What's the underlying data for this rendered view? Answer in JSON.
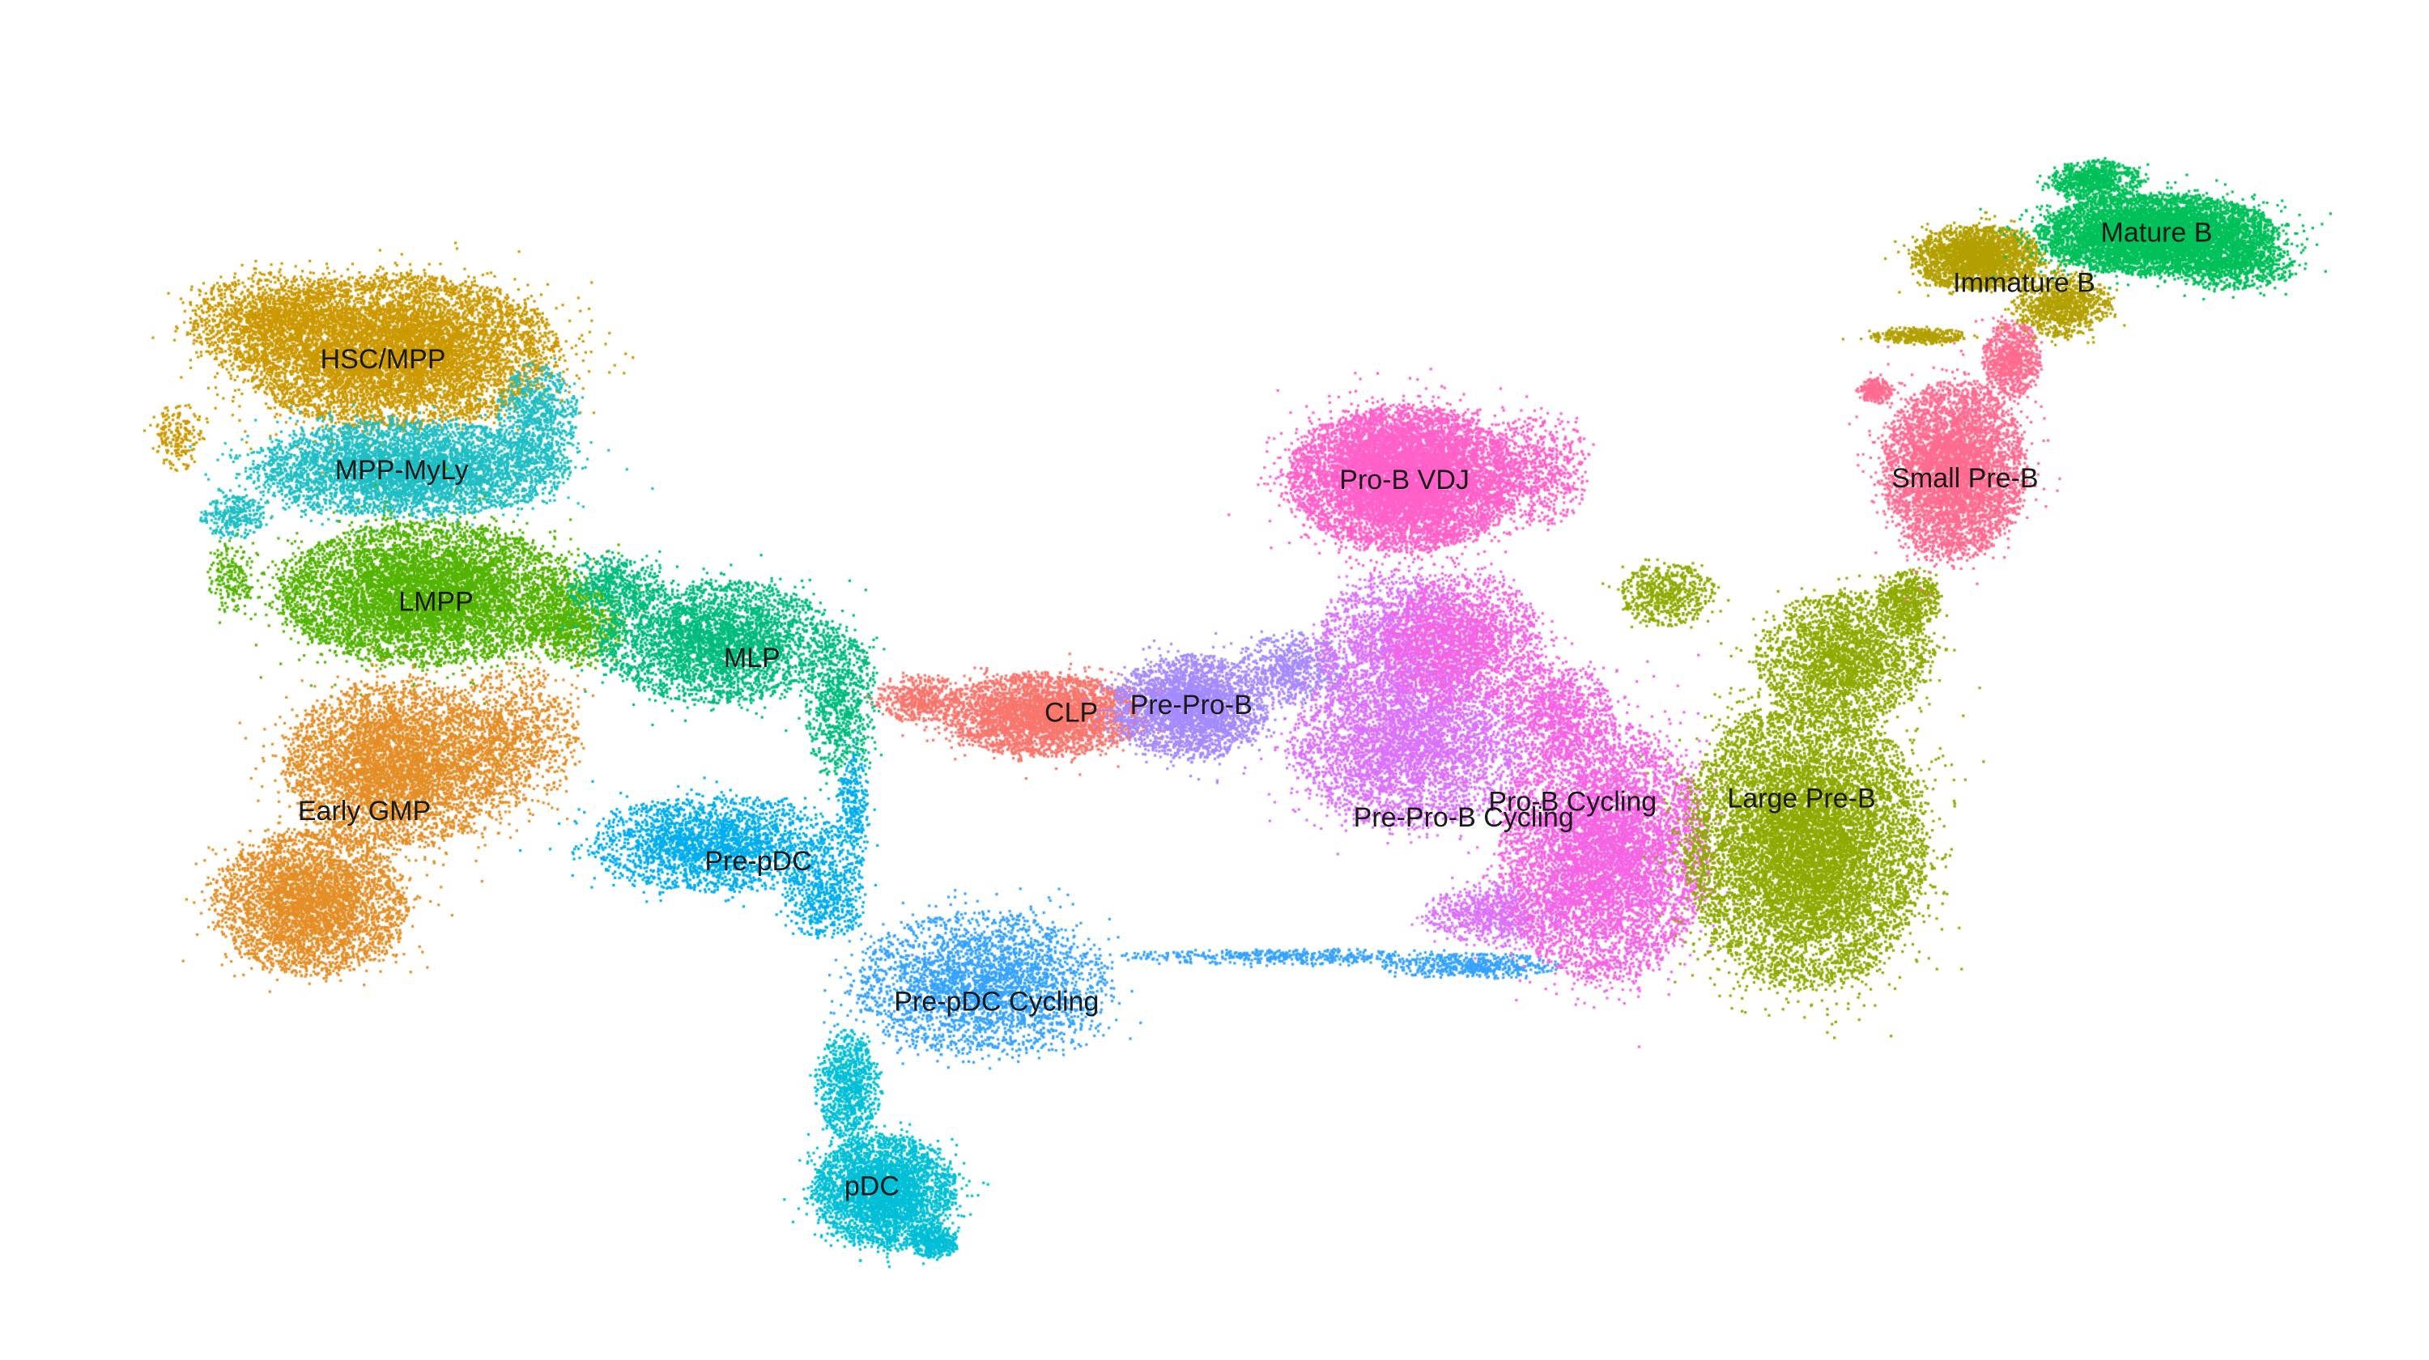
{
  "chart_data": {
    "type": "scatter",
    "title": "",
    "xlabel": "",
    "ylabel": "",
    "xlim": [
      0,
      1560
    ],
    "ylim": [
      0,
      870
    ],
    "axes_visible": false,
    "grid": false,
    "legend": "none",
    "series": [
      {
        "name": "HSC/MPP",
        "color": "#CC9900",
        "label_pos": [
          246,
          231
        ],
        "blobs": [
          [
            255,
            225,
            100,
            48,
            8000
          ],
          [
            175,
            205,
            55,
            30,
            1500
          ],
          [
            115,
            280,
            15,
            22,
            200
          ]
        ]
      },
      {
        "name": "MPP-MyLy",
        "color": "#1FBEC4",
        "label_pos": [
          258,
          302
        ],
        "blobs": [
          [
            262,
            300,
            100,
            30,
            5000
          ],
          [
            150,
            330,
            20,
            14,
            300
          ],
          [
            345,
            265,
            25,
            32,
            700
          ]
        ]
      },
      {
        "name": "LMPP",
        "color": "#53B400",
        "label_pos": [
          280,
          386
        ],
        "blobs": [
          [
            275,
            380,
            95,
            45,
            7000
          ],
          [
            148,
            370,
            14,
            22,
            200
          ],
          [
            370,
            400,
            30,
            25,
            800
          ]
        ]
      },
      {
        "name": "MLP",
        "color": "#00BC7C",
        "label_pos": [
          483,
          422
        ],
        "blobs": [
          [
            460,
            410,
            75,
            38,
            3500
          ],
          [
            540,
            450,
            22,
            48,
            800
          ],
          [
            395,
            375,
            30,
            20,
            500
          ]
        ]
      },
      {
        "name": "Early GMP",
        "color": "#E48E26",
        "label_pos": [
          234,
          520
        ],
        "blobs": [
          [
            255,
            490,
            70,
            52,
            5000
          ],
          [
            200,
            578,
            60,
            45,
            4000
          ],
          [
            330,
            470,
            40,
            45,
            1000
          ]
        ]
      },
      {
        "name": "Pre-pDC",
        "color": "#00ADED",
        "label_pos": [
          487,
          552
        ],
        "blobs": [
          [
            460,
            540,
            80,
            30,
            2500
          ],
          [
            530,
            575,
            25,
            25,
            500
          ],
          [
            548,
            520,
            10,
            40,
            300
          ]
        ]
      },
      {
        "name": "Pre-pDC Cycling",
        "color": "#35A2FF",
        "label_pos": [
          640,
          642
        ],
        "blobs": [
          [
            630,
            630,
            80,
            45,
            3000
          ],
          [
            830,
            612,
            110,
            5,
            450
          ],
          [
            945,
            618,
            55,
            8,
            500
          ]
        ]
      },
      {
        "name": "pDC",
        "color": "#00BFD6",
        "label_pos": [
          560,
          760
        ],
        "blobs": [
          [
            568,
            762,
            45,
            35,
            3500
          ],
          [
            545,
            695,
            20,
            35,
            900
          ],
          [
            600,
            795,
            15,
            10,
            400
          ]
        ]
      },
      {
        "name": "CLP",
        "color": "#F8766D",
        "label_pos": [
          688,
          457
        ],
        "blobs": [
          [
            670,
            457,
            65,
            26,
            3500
          ],
          [
            590,
            447,
            28,
            14,
            500
          ]
        ]
      },
      {
        "name": "Pre-Pro-B",
        "color": "#A58AFF",
        "label_pos": [
          765,
          452
        ],
        "blobs": [
          [
            765,
            452,
            48,
            32,
            3000
          ],
          [
            830,
            428,
            35,
            22,
            700
          ]
        ]
      },
      {
        "name": "Pre-Pro-B Cycling",
        "color": "#DB72FB",
        "label_pos": [
          940,
          524
        ],
        "blobs": [
          [
            905,
            478,
            75,
            50,
            4000
          ],
          [
            900,
            412,
            55,
            45,
            2000
          ],
          [
            960,
            585,
            45,
            20,
            800
          ]
        ]
      },
      {
        "name": "Pro-B VDJ",
        "color": "#FF61C9",
        "label_pos": [
          902,
          308
        ],
        "blobs": [
          [
            902,
            306,
            72,
            45,
            9000
          ],
          [
            990,
            300,
            30,
            35,
            600
          ]
        ]
      },
      {
        "name": "Pro-B Cycling",
        "color": "#F564E3",
        "label_pos": [
          1010,
          514
        ],
        "blobs": [
          [
            1030,
            545,
            65,
            80,
            7000
          ],
          [
            940,
            410,
            50,
            40,
            2000
          ],
          [
            1000,
            455,
            35,
            30,
            1000
          ]
        ]
      },
      {
        "name": "Large Pre-B",
        "color": "#8FAA00",
        "label_pos": [
          1157,
          512
        ],
        "blobs": [
          [
            1160,
            540,
            75,
            90,
            10000
          ],
          [
            1185,
            420,
            55,
            40,
            2500
          ],
          [
            1070,
            380,
            30,
            20,
            600
          ],
          [
            1225,
            385,
            20,
            20,
            600
          ]
        ]
      },
      {
        "name": "Small Pre-B",
        "color": "#FF6C91",
        "label_pos": [
          1262,
          307
        ],
        "blobs": [
          [
            1255,
            300,
            45,
            55,
            5000
          ],
          [
            1292,
            230,
            18,
            25,
            800
          ],
          [
            1205,
            250,
            10,
            8,
            250
          ]
        ]
      },
      {
        "name": "Immature B",
        "color": "#B3A000",
        "label_pos": [
          1300,
          182
        ],
        "blobs": [
          [
            1270,
            165,
            40,
            20,
            2500
          ],
          [
            1325,
            195,
            30,
            20,
            1000
          ],
          [
            1232,
            215,
            30,
            5,
            400
          ]
        ]
      },
      {
        "name": "Mature B",
        "color": "#00C05A",
        "label_pos": [
          1385,
          150
        ],
        "blobs": [
          [
            1385,
            150,
            75,
            25,
            7000
          ],
          [
            1345,
            115,
            30,
            12,
            800
          ],
          [
            1435,
            170,
            40,
            15,
            800
          ]
        ]
      }
    ]
  }
}
